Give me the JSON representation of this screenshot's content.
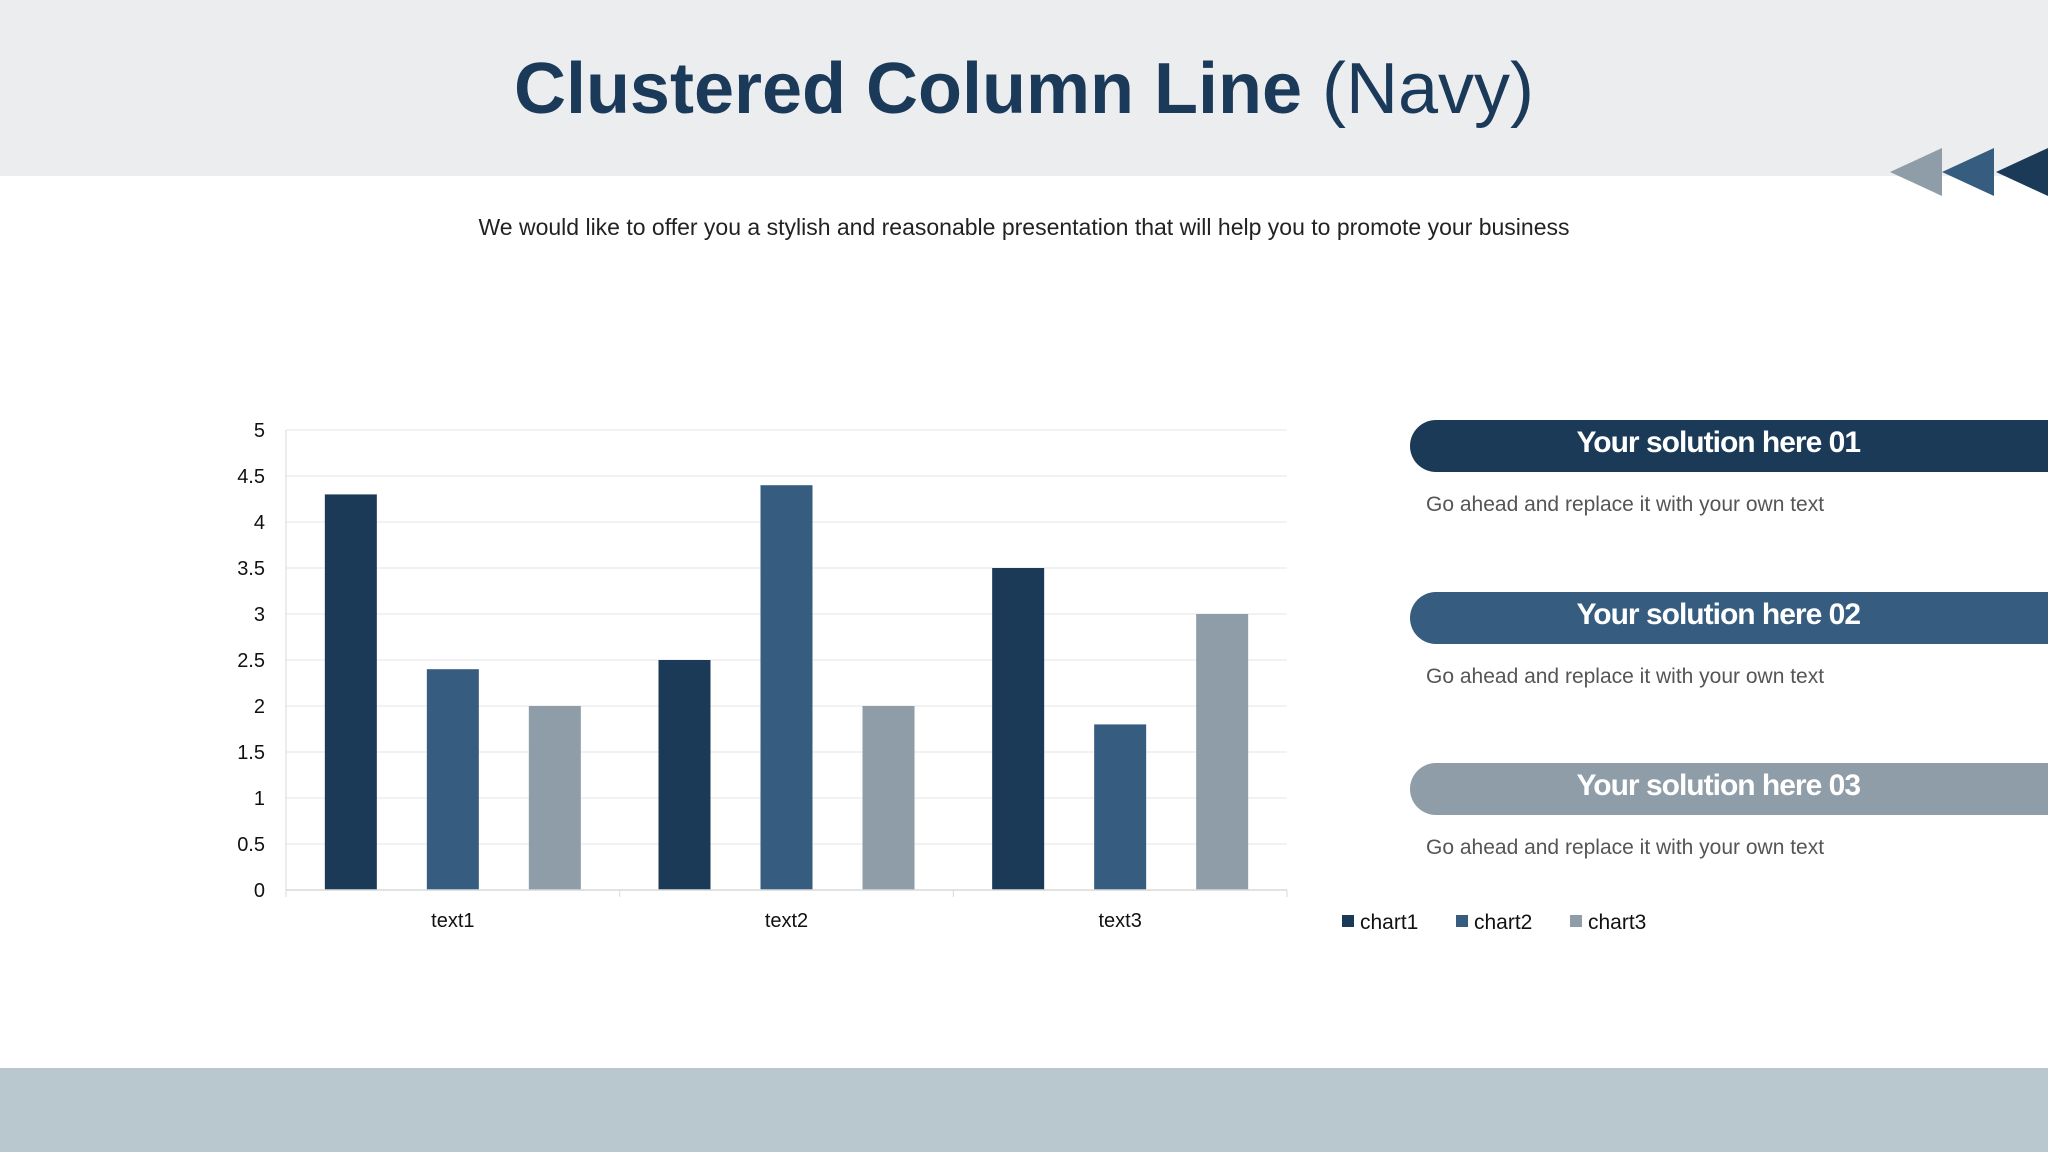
{
  "title": {
    "bold": "Clustered Column Line",
    "light": "(Navy)"
  },
  "subtitle": "We would like to offer you a stylish and reasonable presentation that will help you to promote your business",
  "colors": {
    "navy": "#1a3a58",
    "blue": "#365d80",
    "gray": "#8e9da7",
    "header_bg": "#ecedef",
    "footer_bg": "#b9c8ce",
    "title": "#1b3a5a"
  },
  "solutions": [
    {
      "title": "Your solution here 01",
      "description": "Go ahead and replace it with your own text",
      "color": "#1a3a58"
    },
    {
      "title": "Your solution here 02",
      "description": "Go ahead and replace it with your own text",
      "color": "#365d80"
    },
    {
      "title": "Your solution here 03",
      "description": "Go ahead and replace it with your own text",
      "color": "#8e9da7"
    }
  ],
  "chart_data": {
    "type": "bar",
    "categories": [
      "text1",
      "text2",
      "text3"
    ],
    "series": [
      {
        "name": "chart1",
        "values": [
          4.3,
          2.5,
          3.5
        ],
        "color": "#1a3a58"
      },
      {
        "name": "chart2",
        "values": [
          2.4,
          4.4,
          1.8
        ],
        "color": "#365d80"
      },
      {
        "name": "chart3",
        "values": [
          2.0,
          2.0,
          3.0
        ],
        "color": "#8e9da7"
      }
    ],
    "ylim": [
      0,
      5
    ],
    "yticks": [
      "0",
      "0.5",
      "1",
      "1.5",
      "2",
      "2.5",
      "3",
      "3.5",
      "4",
      "4.5",
      "5"
    ],
    "grid": true,
    "legend": "bottom-right"
  }
}
